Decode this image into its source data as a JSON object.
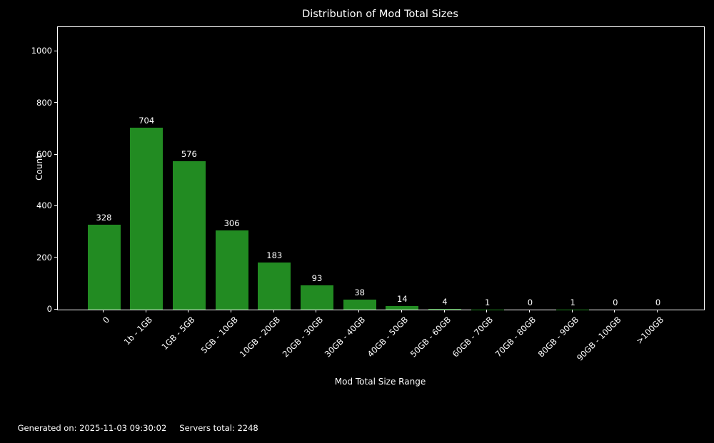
{
  "page": {
    "background": "#000000",
    "text_color": "#ffffff"
  },
  "title": "Distribution of Mod Total Sizes",
  "footer": {
    "generated_on": "Generated on: 2025-11-03 09:30:02",
    "servers_total": "Servers total: 2248"
  },
  "chart_data": {
    "type": "bar",
    "title": "Distribution of Mod Total Sizes",
    "xlabel": "Mod Total Size Range",
    "ylabel": "Count",
    "categories": [
      "0",
      "1b - 1GB",
      "1GB - 5GB",
      "5GB - 10GB",
      "10GB - 20GB",
      "20GB - 30GB",
      "30GB - 40GB",
      "40GB - 50GB",
      "50GB - 60GB",
      "60GB - 70GB",
      "70GB - 80GB",
      "80GB - 90GB",
      "90GB - 100GB",
      ">100GB"
    ],
    "values": [
      328,
      704,
      576,
      306,
      183,
      93,
      38,
      14,
      4,
      1,
      0,
      1,
      0,
      0
    ],
    "bar_labels": [
      328,
      704,
      576,
      306,
      183,
      93,
      38,
      14,
      4,
      1,
      0,
      1,
      0,
      0
    ],
    "yticks": [
      0,
      200,
      400,
      600,
      800,
      1000
    ],
    "ylim": [
      0,
      1095
    ],
    "grid": false,
    "legend": null,
    "bar_color": "#228B22",
    "background": "#000000",
    "text_color": "#ffffff",
    "x_tick_rotation_deg": 45
  }
}
